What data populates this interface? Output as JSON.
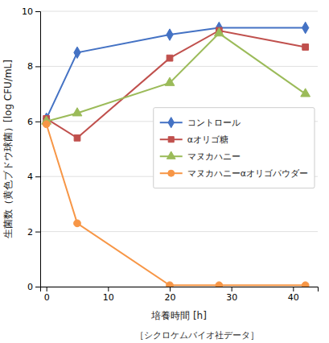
{
  "chart_data": {
    "type": "line",
    "x": [
      0,
      5,
      20,
      28,
      42
    ],
    "series": [
      {
        "name": "コントロール",
        "color": "#4472C4",
        "marker": "diamond",
        "values": [
          6.1,
          8.5,
          9.15,
          9.4,
          9.4
        ]
      },
      {
        "name": "αオリゴ糖",
        "color": "#C0504D",
        "marker": "square",
        "values": [
          6.1,
          5.4,
          8.3,
          9.3,
          8.7
        ]
      },
      {
        "name": "マヌカハニー",
        "color": "#9BBB59",
        "marker": "triangle",
        "values": [
          6.0,
          6.3,
          7.4,
          9.2,
          7.0
        ]
      },
      {
        "name": "マヌカハニーαオリゴパウダー",
        "color": "#F79646",
        "marker": "circle",
        "values": [
          5.9,
          2.3,
          0.05,
          0.05,
          0.05
        ]
      }
    ],
    "xlim": [
      -1,
      44
    ],
    "ylim": [
      0,
      10
    ],
    "xticks": [
      0,
      10,
      20,
      30,
      40
    ],
    "yticks": [
      0,
      2,
      4,
      6,
      8,
      10
    ],
    "xlabel": "培養時間 [h]",
    "ylabel": "生菌数（黄色ブドウ球菌）[log CFU/mL]",
    "annotations": [
      "［シクロケムバイオ社データ］"
    ],
    "grid": true,
    "legend": "right"
  }
}
